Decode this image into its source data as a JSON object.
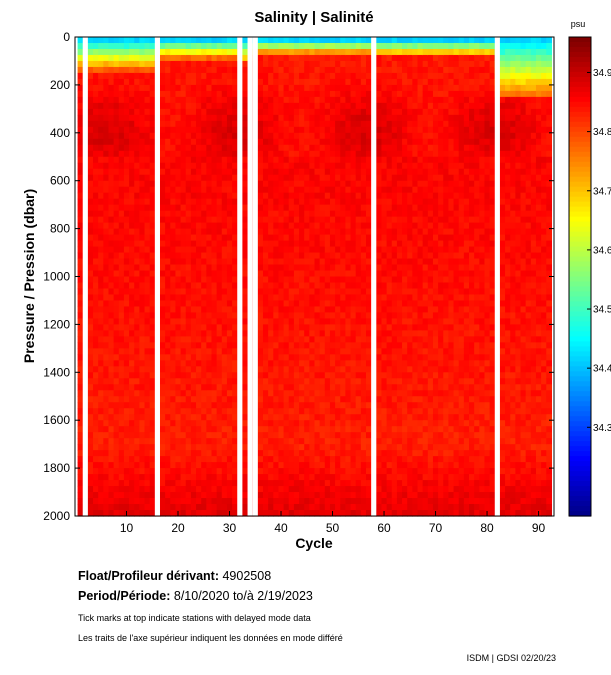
{
  "chart_data": {
    "type": "heatmap",
    "title": "Salinity | Salinité",
    "xlabel": "Cycle",
    "ylabel": "Pressure / Pression (dbar)",
    "x_ticks": [
      10,
      20,
      30,
      40,
      50,
      60,
      70,
      80,
      90
    ],
    "y_ticks": [
      0,
      200,
      400,
      600,
      800,
      1000,
      1200,
      1400,
      1600,
      1800,
      2000
    ],
    "xlim": [
      0,
      93
    ],
    "ylim": [
      2000,
      0
    ],
    "colorbar": {
      "unit": "psu",
      "range": [
        34.15,
        34.96
      ],
      "tick_labels": [
        "34.9",
        "34.8",
        "34.7",
        "34.6",
        "34.5",
        "34.4",
        "34.3"
      ],
      "tick_values": [
        34.9,
        34.8,
        34.7,
        34.6,
        34.5,
        34.4,
        34.3
      ]
    },
    "gap_cycles": [
      2,
      16,
      32,
      34,
      35,
      58,
      82
    ],
    "surface_fresh_cycles": [
      [
        0,
        16,
        130
      ],
      [
        16,
        32,
        80
      ],
      [
        35,
        58,
        60
      ],
      [
        58,
        82,
        70
      ],
      [
        82,
        93,
        250
      ]
    ],
    "deep_max_pressure": 1980
  },
  "float": {
    "label": "Float/Profileur dérivant:",
    "value": "4902508"
  },
  "period": {
    "label": "Period/Période:",
    "value": "8/10/2020  to/à  2/19/2023"
  },
  "notes": {
    "en": "Tick marks at top indicate stations with delayed mode data",
    "fr": "Les traits de l'axe supérieur indiquent les données en mode différé"
  },
  "credit": "ISDM | GDSI  02/20/23",
  "colors": {
    "plot_border": "#000000",
    "background": "#ffffff"
  }
}
